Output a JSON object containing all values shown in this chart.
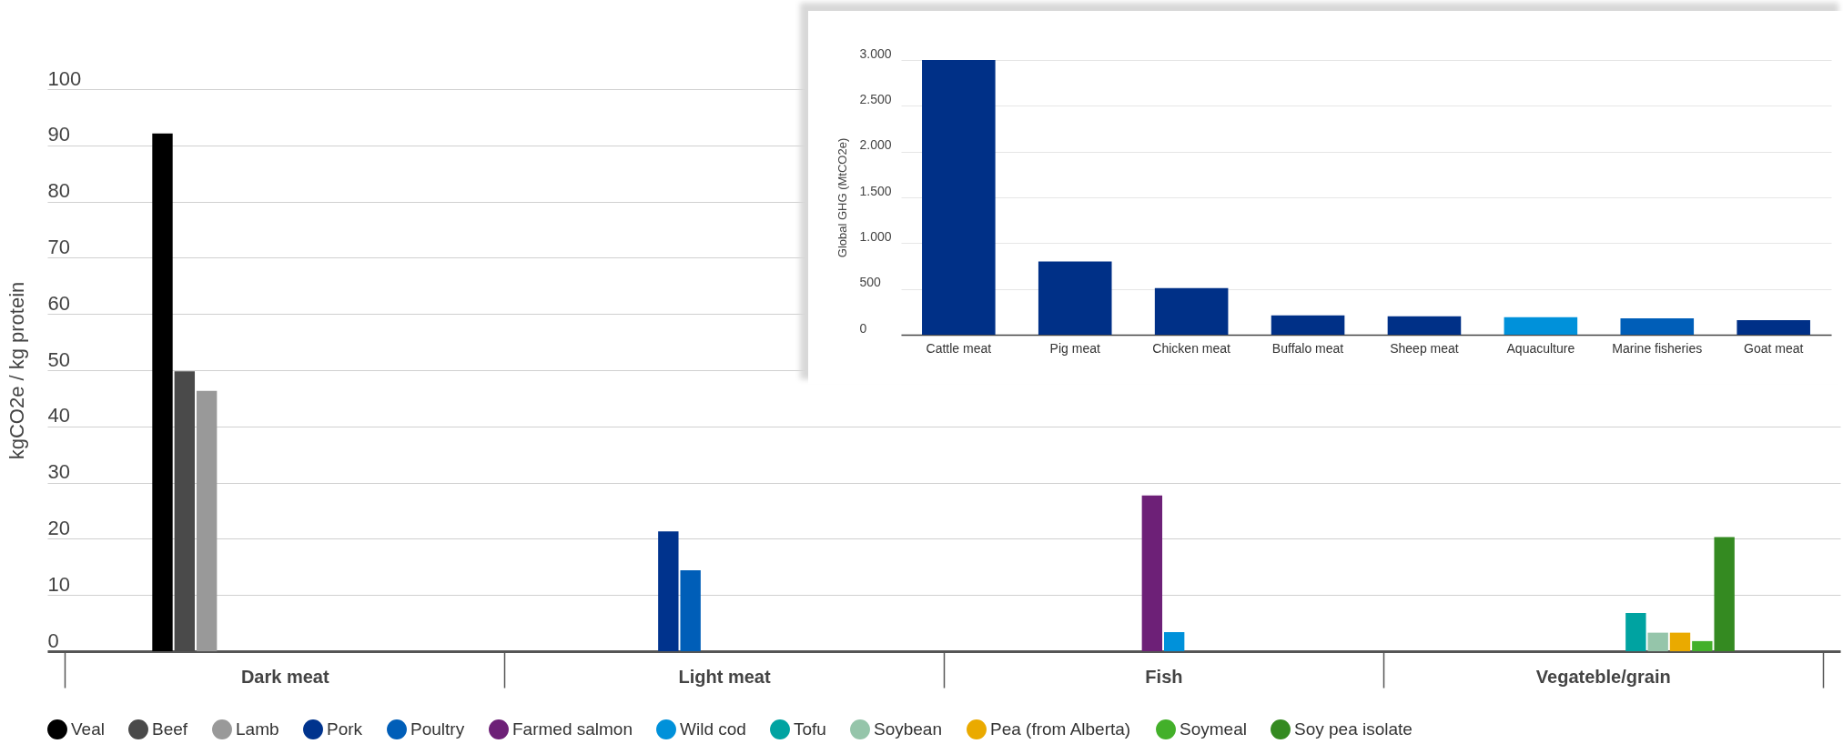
{
  "chart_data": [
    {
      "type": "bar",
      "categories": [
        "Dark meat",
        "Light meat",
        "Fish",
        "Vegateble/grain"
      ],
      "ylabel": "kgCO2e / kg protein",
      "ylim": [
        0,
        100
      ],
      "yticks": [
        0,
        10,
        20,
        30,
        40,
        50,
        60,
        70,
        80,
        90,
        100
      ],
      "grid": "y",
      "legend": "bottom",
      "series": [
        {
          "name": "Veal",
          "color": "#000000",
          "values": [
            92.1,
            null,
            null,
            null
          ]
        },
        {
          "name": "Beef",
          "color": "#4a4a4a",
          "values": [
            49.8,
            null,
            null,
            null
          ]
        },
        {
          "name": "Lamb",
          "color": "#999999",
          "values": [
            46.3,
            null,
            null,
            null
          ]
        },
        {
          "name": "Pork",
          "color": "#00338d",
          "values": [
            null,
            21.3,
            null,
            null
          ]
        },
        {
          "name": "Poultry",
          "color": "#005eb8",
          "values": [
            null,
            14.4,
            null,
            null
          ]
        },
        {
          "name": "Farmed salmon",
          "color": "#6d2077",
          "values": [
            null,
            null,
            27.7,
            null
          ]
        },
        {
          "name": "Wild cod",
          "color": "#0091da",
          "values": [
            null,
            null,
            3.4,
            null
          ]
        },
        {
          "name": "Tofu",
          "color": "#00a3a1",
          "values": [
            null,
            null,
            null,
            6.8
          ]
        },
        {
          "name": "Soybean",
          "color": "#95c5aa",
          "values": [
            null,
            null,
            null,
            3.3
          ]
        },
        {
          "name": "Pea (from Alberta)",
          "color": "#eaaa00",
          "values": [
            null,
            null,
            null,
            3.3
          ]
        },
        {
          "name": "Soymeal",
          "color": "#43b02a",
          "values": [
            null,
            null,
            null,
            1.8
          ]
        },
        {
          "name": "Soy pea isolate",
          "color": "#348a21",
          "values": [
            null,
            null,
            null,
            20.3
          ]
        }
      ]
    },
    {
      "type": "bar",
      "categories": [
        "Cattle meat",
        "Pig meat",
        "Chicken meat",
        "Buffalo meat",
        "Sheep meat",
        "Aquaculture",
        "Marine fisheries",
        "Goat meat"
      ],
      "ylabel": "Global GHG (MtCO2e)",
      "ylim": [
        0,
        3000
      ],
      "yticks": [
        0,
        500,
        {
          "value": 1000,
          "label": "1.000"
        },
        {
          "value": 1500,
          "label": "1.500"
        },
        {
          "value": 2000,
          "label": "2.000"
        },
        {
          "value": 2500,
          "label": "2.500"
        },
        {
          "value": 3000,
          "label": "3.000"
        }
      ],
      "grid": "y",
      "values": [
        3000,
        800,
        510,
        210,
        200,
        190,
        180,
        160
      ],
      "colors": [
        "#003087",
        "#003087",
        "#003087",
        "#003087",
        "#003087",
        "#0091da",
        "#005eb8",
        "#003087"
      ]
    }
  ]
}
